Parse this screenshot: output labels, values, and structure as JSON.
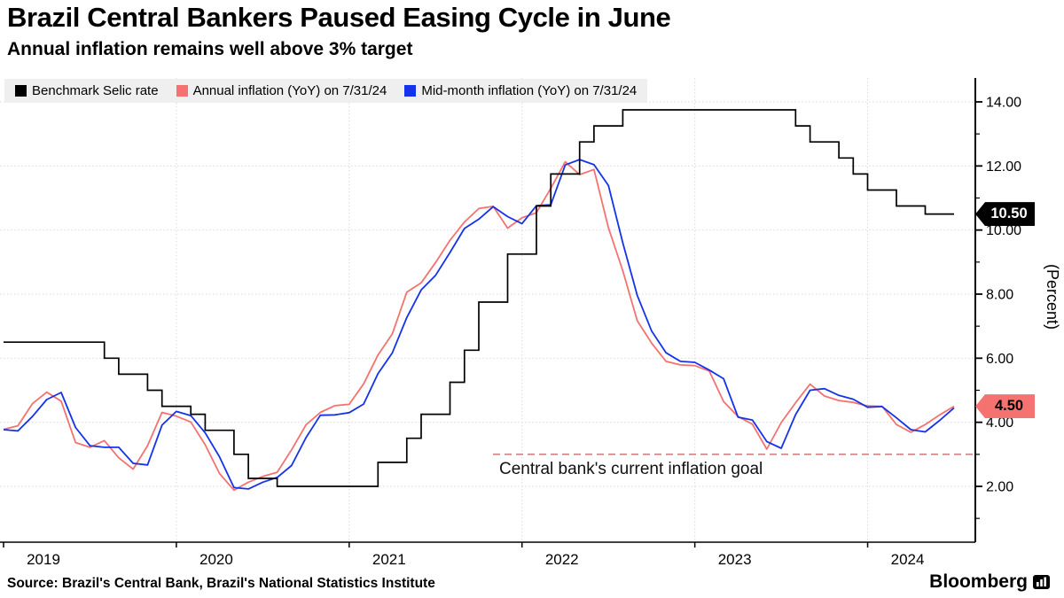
{
  "header": {
    "title": "Brazil Central Bankers Paused Easing Cycle in June",
    "subtitle": "Annual inflation remains well above 3% target"
  },
  "y_axis": {
    "label": "(Percent)",
    "tick_labels": [
      "14.00",
      "12.00",
      "10.00",
      "8.00",
      "6.00",
      "4.00",
      "2.00"
    ],
    "tick_values": [
      14,
      12,
      10,
      8,
      6,
      4,
      2
    ],
    "minor_tick_values": [
      1,
      3,
      5,
      7,
      9,
      11,
      13
    ]
  },
  "x_axis": {
    "year_labels": [
      "2019",
      "2020",
      "2021",
      "2022",
      "2023",
      "2024"
    ]
  },
  "badges": {
    "selic": {
      "label": "10.50",
      "value": 10.5,
      "bg": "#000000",
      "fg": "#ffffff"
    },
    "inflation": {
      "label": "4.50",
      "value": 4.5,
      "bg": "#f4726f",
      "fg": "#000000"
    }
  },
  "footer": {
    "source": "Source: Brazil's Central Bank, Brazil's National Statistics Institute",
    "logo": "Bloomberg"
  },
  "colors": {
    "selic": "#000000",
    "annual_inflation": "#f4726f",
    "mid_month_inflation": "#1433e8",
    "goal_line": "#c76e6e",
    "gridline": "#d9d9d9",
    "legend_bg": "#efefef"
  },
  "chart_data": {
    "type": "line",
    "title": "Brazil Central Bankers Paused Easing Cycle in June",
    "subtitle": "Annual inflation remains well above 3% target",
    "x_unit": "month",
    "x_start": "2019-01",
    "x_end": "2024-07",
    "ylim": [
      0,
      14.75
    ],
    "ylabel": "(Percent)",
    "y_gridlines": [
      2,
      4,
      6,
      8,
      10,
      12,
      14
    ],
    "grid": true,
    "legend_position": "top-left",
    "goal_line": {
      "value": 3,
      "label": "Central bank's current inflation goal"
    },
    "series": [
      {
        "name": "Benchmark Selic rate",
        "color": "#000000",
        "line_style": "step",
        "end_value": 10.5,
        "values": [
          6.5,
          6.5,
          6.5,
          6.5,
          6.5,
          6.5,
          6.5,
          6.0,
          5.5,
          5.5,
          5.0,
          4.5,
          4.5,
          4.25,
          3.75,
          3.75,
          3.0,
          2.25,
          2.25,
          2.0,
          2.0,
          2.0,
          2.0,
          2.0,
          2.0,
          2.0,
          2.75,
          2.75,
          3.5,
          4.25,
          4.25,
          5.25,
          6.25,
          7.75,
          7.75,
          9.25,
          9.25,
          10.75,
          11.75,
          11.75,
          12.75,
          13.25,
          13.25,
          13.75,
          13.75,
          13.75,
          13.75,
          13.75,
          13.75,
          13.75,
          13.75,
          13.75,
          13.75,
          13.75,
          13.75,
          13.25,
          12.75,
          12.75,
          12.25,
          11.75,
          11.25,
          11.25,
          10.75,
          10.75,
          10.5,
          10.5,
          10.5
        ]
      },
      {
        "name": "Annual inflation (YoY) on 7/31/24",
        "color": "#f4726f",
        "line_style": "solid",
        "end_value": 4.5,
        "values": [
          3.78,
          3.89,
          4.58,
          4.94,
          4.66,
          3.37,
          3.22,
          3.43,
          2.89,
          2.54,
          3.27,
          4.31,
          4.19,
          4.01,
          3.3,
          2.4,
          1.88,
          2.13,
          2.31,
          2.44,
          3.14,
          3.92,
          4.31,
          4.52,
          4.56,
          5.2,
          6.1,
          6.76,
          8.06,
          8.35,
          8.99,
          9.68,
          10.25,
          10.67,
          10.74,
          10.06,
          10.38,
          10.54,
          11.3,
          12.13,
          11.73,
          11.89,
          10.07,
          8.73,
          7.17,
          6.47,
          5.9,
          5.79,
          5.77,
          5.6,
          4.65,
          4.18,
          3.94,
          3.16,
          3.99,
          4.61,
          5.19,
          4.82,
          4.68,
          4.62,
          4.51,
          4.5,
          3.93,
          3.69,
          3.93,
          4.23,
          4.5
        ]
      },
      {
        "name": "Mid-month inflation (YoY) on 7/31/24",
        "color": "#1433e8",
        "line_style": "solid",
        "end_value": 4.45,
        "values": [
          3.77,
          3.73,
          4.18,
          4.71,
          4.93,
          3.84,
          3.27,
          3.22,
          3.22,
          2.72,
          2.67,
          3.91,
          4.34,
          4.21,
          3.67,
          2.92,
          1.96,
          1.92,
          2.13,
          2.28,
          2.65,
          3.52,
          4.22,
          4.23,
          4.3,
          4.57,
          5.52,
          6.17,
          7.27,
          8.13,
          8.59,
          9.3,
          10.05,
          10.34,
          10.73,
          10.42,
          10.2,
          10.76,
          10.79,
          12.03,
          12.2,
          12.04,
          11.39,
          9.6,
          7.96,
          6.85,
          6.17,
          5.9,
          5.87,
          5.63,
          5.36,
          4.16,
          4.07,
          3.4,
          3.19,
          4.24,
          5.0,
          5.05,
          4.84,
          4.72,
          4.47,
          4.49,
          4.14,
          3.77,
          3.7,
          4.06,
          4.45
        ]
      }
    ]
  }
}
